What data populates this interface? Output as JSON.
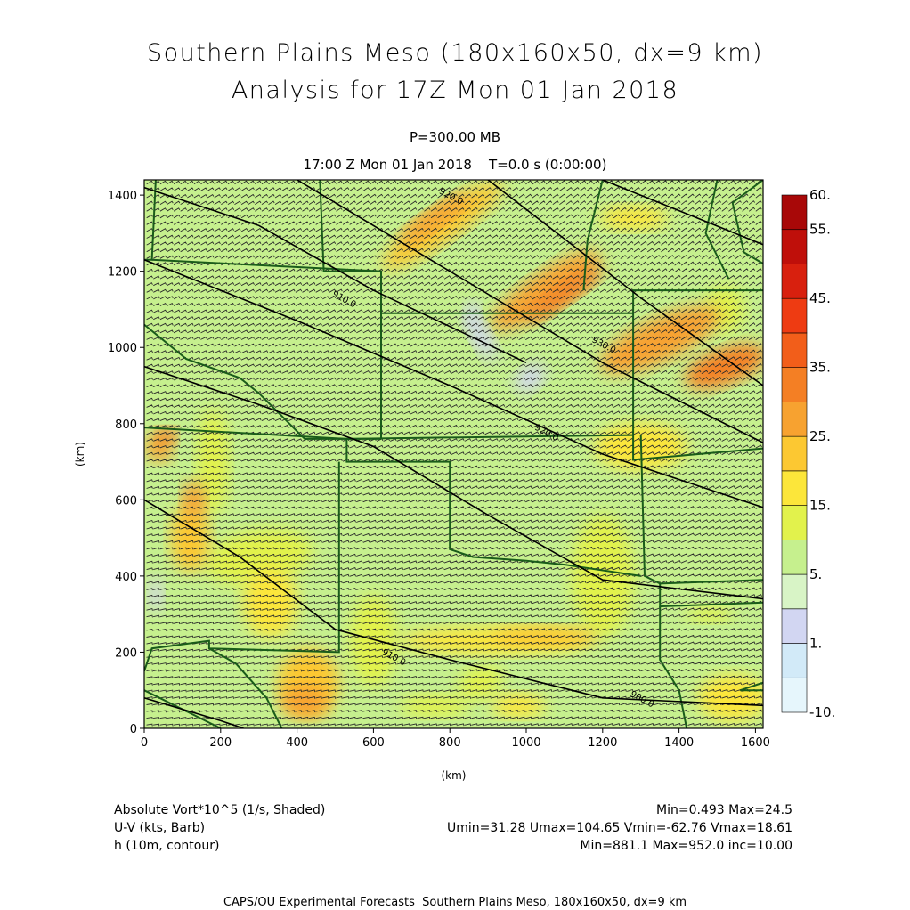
{
  "header": {
    "title_line1": "Southern Plains Meso (180x160x50, dx=9 km)",
    "title_line2": "Analysis for 17Z Mon 01 Jan 2018",
    "level": "P=300.00 MB",
    "time_line": "17:00 Z Mon 01 Jan 2018    T=0.0 s (0:00:00)"
  },
  "chart_data": {
    "type": "heatmap",
    "xlabel": "(km)",
    "ylabel": "(km)",
    "xlim": [
      0,
      1620
    ],
    "ylim": [
      0,
      1440
    ],
    "x_ticks": [
      "0",
      "200",
      "400",
      "600",
      "800",
      "1000",
      "1200",
      "1400",
      "1600"
    ],
    "y_ticks": [
      "0",
      "200",
      "400",
      "600",
      "800",
      "1000",
      "1200",
      "1400"
    ],
    "colorbar": {
      "levels": [
        -10,
        0,
        1,
        3,
        5,
        10,
        15,
        20,
        25,
        30,
        35,
        40,
        45,
        50,
        55,
        60
      ],
      "labels": [
        "-10.",
        "1.",
        "5.",
        "15.",
        "25.",
        "35.",
        "45.",
        "55.",
        "60."
      ],
      "colors": [
        "#e6f6fc",
        "#d2eaf8",
        "#d2d6f2",
        "#d8f4c6",
        "#c6f08e",
        "#e2f24c",
        "#fce63a",
        "#fcc832",
        "#f7a230",
        "#f47f24",
        "#f25e1a",
        "#ee3b12",
        "#d8200e",
        "#bf0f0a",
        "#a80808"
      ]
    },
    "contour_labels": [
      "930.0",
      "920.0",
      "910.0",
      "920.0",
      "910.0",
      "900.0"
    ],
    "contour_levels": {
      "min": 881.1,
      "max": 952.0,
      "inc": 10.0
    },
    "vorticity_range": {
      "min": 0.493,
      "max": 24.5
    },
    "wind_range": {
      "umin": 31.28,
      "umax": 104.65,
      "vmin": -62.76,
      "vmax": 18.61
    }
  },
  "legend": {
    "rows": [
      {
        "left": "Absolute Vort*10^5 (1/s, Shaded)",
        "right": "Min=0.493 Max=24.5"
      },
      {
        "left": "U-V (kts, Barb)",
        "right": "Umin=31.28 Umax=104.65 Vmin=-62.76 Vmax=18.61"
      },
      {
        "left": "h (10m, contour)",
        "right": "Min=881.1 Max=952.0 inc=10.00"
      }
    ]
  },
  "footer": "CAPS/OU Experimental Forecasts  Southern Plains Meso, 180x160x50, dx=9 km",
  "colors": {
    "contour": "#000000",
    "borders": "#1a5c1a",
    "barbs": "#2a2a2a",
    "background_field": "#c6f08e"
  }
}
